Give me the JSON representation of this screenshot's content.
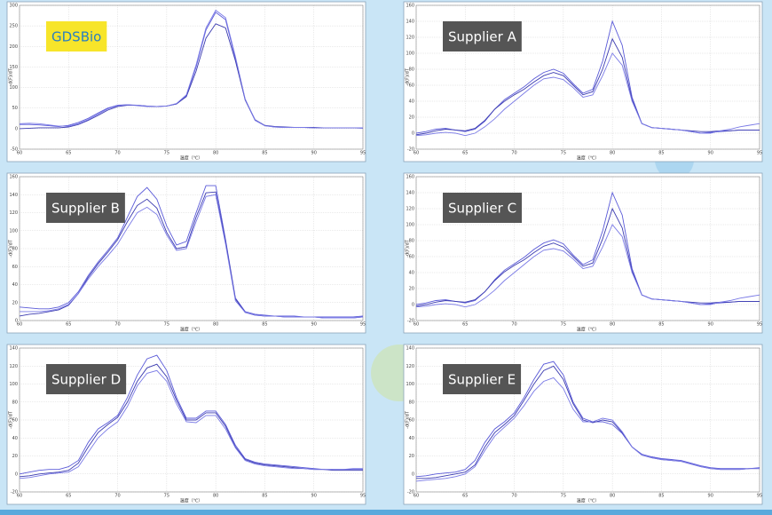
{
  "chart_data": [
    {
      "type": "line",
      "title": "GDSBio",
      "title_color": "#2a7fc1",
      "title_background": "#f7e52a",
      "x_label": "温度（℃）",
      "y_label": "-d(F)/dT",
      "x": [
        60,
        61,
        62,
        63,
        64,
        65,
        66,
        67,
        68,
        69,
        70,
        71,
        72,
        73,
        74,
        75,
        76,
        77,
        78,
        79,
        80,
        81,
        82,
        83,
        84,
        85,
        86,
        87,
        88,
        89,
        90,
        91,
        92,
        93,
        94,
        95
      ],
      "xlim": [
        60,
        95
      ],
      "xticks": [
        60,
        65,
        70,
        75,
        80,
        85,
        90,
        95
      ],
      "ylim": [
        -50,
        300
      ],
      "yticks": [
        -50,
        0,
        50,
        100,
        150,
        200,
        250,
        300
      ],
      "grid": true,
      "series": [
        {
          "color": "#5a5ad8",
          "values": [
            10,
            10,
            9,
            7,
            5,
            8,
            15,
            25,
            38,
            50,
            57,
            58,
            56,
            54,
            54,
            55,
            60,
            80,
            150,
            240,
            283,
            265,
            170,
            70,
            20,
            7,
            4,
            3,
            3,
            3,
            2,
            2,
            2,
            2,
            2,
            1
          ]
        },
        {
          "color": "#3b3bb0",
          "values": [
            0,
            1,
            2,
            2,
            2,
            4,
            10,
            20,
            32,
            45,
            54,
            57,
            57,
            55,
            54,
            55,
            60,
            78,
            140,
            220,
            255,
            245,
            165,
            70,
            22,
            8,
            5,
            4,
            3,
            3,
            3,
            2,
            2,
            2,
            2,
            2
          ]
        },
        {
          "color": "#7a7ae6",
          "values": [
            12,
            13,
            12,
            9,
            6,
            6,
            12,
            22,
            35,
            48,
            56,
            58,
            57,
            55,
            54,
            55,
            61,
            82,
            155,
            245,
            288,
            270,
            175,
            72,
            21,
            7,
            4,
            3,
            3,
            3,
            2,
            2,
            2,
            2,
            2,
            2
          ]
        }
      ]
    },
    {
      "type": "line",
      "title": "Supplier A",
      "title_color": "#ffffff",
      "title_background": "#555555",
      "x_label": "温度（℃）",
      "y_label": "-d(F)/dT",
      "x": [
        60,
        61,
        62,
        63,
        64,
        65,
        66,
        67,
        68,
        69,
        70,
        71,
        72,
        73,
        74,
        75,
        76,
        77,
        78,
        79,
        80,
        81,
        82,
        83,
        84,
        85,
        86,
        87,
        88,
        89,
        90,
        91,
        92,
        93,
        94,
        95
      ],
      "xlim": [
        60,
        95
      ],
      "xticks": [
        60,
        65,
        70,
        75,
        80,
        85,
        90,
        95
      ],
      "ylim": [
        -20,
        160
      ],
      "yticks": [
        -20,
        0,
        20,
        40,
        60,
        80,
        100,
        120,
        140,
        160
      ],
      "grid": true,
      "series": [
        {
          "color": "#5a5ad8",
          "values": [
            0,
            2,
            5,
            6,
            4,
            2,
            5,
            15,
            30,
            42,
            50,
            58,
            68,
            76,
            80,
            75,
            62,
            50,
            55,
            90,
            140,
            110,
            45,
            12,
            7,
            6,
            5,
            4,
            2,
            0,
            1,
            2,
            3,
            4,
            4,
            4
          ]
        },
        {
          "color": "#3b3bb0",
          "values": [
            -2,
            0,
            3,
            5,
            4,
            3,
            6,
            16,
            30,
            40,
            48,
            55,
            64,
            72,
            76,
            72,
            60,
            48,
            52,
            80,
            118,
            95,
            42,
            12,
            7,
            6,
            5,
            4,
            3,
            2,
            2,
            3,
            3,
            4,
            4,
            4
          ]
        },
        {
          "color": "#7a7ae6",
          "values": [
            -3,
            -2,
            0,
            1,
            0,
            -3,
            0,
            8,
            18,
            30,
            40,
            50,
            60,
            68,
            70,
            67,
            57,
            45,
            48,
            72,
            100,
            85,
            40,
            12,
            7,
            6,
            5,
            4,
            2,
            0,
            0,
            3,
            5,
            8,
            10,
            12
          ]
        }
      ]
    },
    {
      "type": "line",
      "title": "Supplier B",
      "title_color": "#ffffff",
      "title_background": "#555555",
      "x_label": "温度（℃）",
      "y_label": "-d(F)/dT",
      "x": [
        60,
        61,
        62,
        63,
        64,
        65,
        66,
        67,
        68,
        69,
        70,
        71,
        72,
        73,
        74,
        75,
        76,
        77,
        78,
        79,
        80,
        81,
        82,
        83,
        84,
        85,
        86,
        87,
        88,
        89,
        90,
        91,
        92,
        93,
        94,
        95
      ],
      "xlim": [
        60,
        95
      ],
      "xticks": [
        60,
        65,
        70,
        75,
        80,
        85,
        90,
        95
      ],
      "ylim": [
        0,
        160
      ],
      "yticks": [
        0,
        20,
        40,
        60,
        80,
        100,
        120,
        140,
        160
      ],
      "grid": true,
      "series": [
        {
          "color": "#5a5ad8",
          "values": [
            15,
            14,
            13,
            13,
            15,
            20,
            32,
            50,
            65,
            78,
            92,
            115,
            138,
            148,
            135,
            105,
            84,
            88,
            120,
            150,
            150,
            90,
            25,
            10,
            7,
            6,
            5,
            5,
            5,
            4,
            4,
            4,
            4,
            4,
            4,
            5
          ]
        },
        {
          "color": "#3b3bb0",
          "values": [
            5,
            7,
            8,
            10,
            12,
            17,
            30,
            48,
            63,
            76,
            90,
            110,
            128,
            135,
            125,
            98,
            80,
            82,
            115,
            142,
            143,
            88,
            24,
            9,
            6,
            5,
            5,
            4,
            4,
            4,
            4,
            3,
            3,
            3,
            3,
            4
          ]
        },
        {
          "color": "#7a7ae6",
          "values": [
            10,
            10,
            10,
            11,
            13,
            18,
            30,
            46,
            60,
            72,
            85,
            103,
            120,
            126,
            118,
            95,
            78,
            80,
            110,
            138,
            140,
            85,
            22,
            9,
            6,
            5,
            5,
            4,
            4,
            4,
            4,
            3,
            3,
            3,
            3,
            4
          ]
        }
      ]
    },
    {
      "type": "line",
      "title": "Supplier C",
      "title_color": "#ffffff",
      "title_background": "#555555",
      "x_label": "温度（℃）",
      "y_label": "-d(F)/dT",
      "x": [
        60,
        61,
        62,
        63,
        64,
        65,
        66,
        67,
        68,
        69,
        70,
        71,
        72,
        73,
        74,
        75,
        76,
        77,
        78,
        79,
        80,
        81,
        82,
        83,
        84,
        85,
        86,
        87,
        88,
        89,
        90,
        91,
        92,
        93,
        94,
        95
      ],
      "xlim": [
        60,
        95
      ],
      "xticks": [
        60,
        65,
        70,
        75,
        80,
        85,
        90,
        95
      ],
      "ylim": [
        -20,
        160
      ],
      "yticks": [
        -20,
        0,
        20,
        40,
        60,
        80,
        100,
        120,
        140,
        160
      ],
      "grid": true,
      "series": [
        {
          "color": "#5a5ad8",
          "values": [
            0,
            2,
            5,
            6,
            4,
            2,
            5,
            16,
            31,
            43,
            51,
            59,
            69,
            77,
            81,
            76,
            62,
            50,
            56,
            92,
            140,
            112,
            45,
            12,
            7,
            6,
            5,
            4,
            2,
            0,
            1,
            2,
            3,
            4,
            4,
            4
          ]
        },
        {
          "color": "#3b3bb0",
          "values": [
            -2,
            0,
            3,
            5,
            4,
            3,
            6,
            16,
            30,
            41,
            49,
            56,
            65,
            73,
            77,
            72,
            60,
            48,
            52,
            82,
            120,
            96,
            42,
            12,
            7,
            6,
            5,
            4,
            3,
            2,
            2,
            3,
            3,
            4,
            4,
            4
          ]
        },
        {
          "color": "#7a7ae6",
          "values": [
            -3,
            -2,
            0,
            1,
            0,
            -3,
            0,
            8,
            18,
            30,
            40,
            50,
            60,
            68,
            70,
            67,
            57,
            45,
            48,
            72,
            100,
            85,
            40,
            12,
            7,
            6,
            5,
            4,
            2,
            0,
            0,
            3,
            5,
            8,
            10,
            12
          ]
        }
      ]
    },
    {
      "type": "line",
      "title": "Supplier D",
      "title_color": "#ffffff",
      "title_background": "#555555",
      "x_label": "温度（℃）",
      "y_label": "-d(F)/dT",
      "x": [
        60,
        61,
        62,
        63,
        64,
        65,
        66,
        67,
        68,
        69,
        70,
        71,
        72,
        73,
        74,
        75,
        76,
        77,
        78,
        79,
        80,
        81,
        82,
        83,
        84,
        85,
        86,
        87,
        88,
        89,
        90,
        91,
        92,
        93,
        94,
        95
      ],
      "xlim": [
        60,
        95
      ],
      "xticks": [
        60,
        65,
        70,
        75,
        80,
        85,
        90,
        95
      ],
      "ylim": [
        -20,
        140
      ],
      "yticks": [
        -20,
        0,
        20,
        40,
        60,
        80,
        100,
        120,
        140
      ],
      "grid": true,
      "series": [
        {
          "color": "#5a5ad8",
          "values": [
            0,
            2,
            4,
            5,
            5,
            8,
            15,
            35,
            50,
            57,
            65,
            85,
            110,
            128,
            132,
            115,
            85,
            62,
            62,
            70,
            70,
            55,
            32,
            17,
            13,
            11,
            10,
            9,
            8,
            7,
            6,
            5,
            5,
            5,
            5,
            5
          ]
        },
        {
          "color": "#3b3bb0",
          "values": [
            -3,
            -2,
            0,
            1,
            2,
            4,
            12,
            30,
            46,
            55,
            63,
            80,
            103,
            118,
            122,
            108,
            82,
            60,
            60,
            68,
            68,
            53,
            30,
            16,
            12,
            10,
            9,
            8,
            7,
            6,
            5,
            5,
            4,
            4,
            4,
            4
          ]
        },
        {
          "color": "#7a7ae6",
          "values": [
            -5,
            -4,
            -2,
            0,
            1,
            2,
            8,
            24,
            40,
            50,
            58,
            75,
            98,
            112,
            115,
            103,
            78,
            58,
            57,
            65,
            65,
            50,
            29,
            15,
            11,
            9,
            8,
            7,
            6,
            6,
            5,
            5,
            5,
            5,
            6,
            6
          ]
        }
      ]
    },
    {
      "type": "line",
      "title": "Supplier E",
      "title_color": "#ffffff",
      "title_background": "#555555",
      "x_label": "温度（℃）",
      "y_label": "-d(F)/dT",
      "x": [
        60,
        61,
        62,
        63,
        64,
        65,
        66,
        67,
        68,
        69,
        70,
        71,
        72,
        73,
        74,
        75,
        76,
        77,
        78,
        79,
        80,
        81,
        82,
        83,
        84,
        85,
        86,
        87,
        88,
        89,
        90,
        91,
        92,
        93,
        94,
        95
      ],
      "xlim": [
        60,
        95
      ],
      "xticks": [
        60,
        65,
        70,
        75,
        80,
        85,
        90,
        95
      ],
      "ylim": [
        -20,
        140
      ],
      "yticks": [
        -20,
        0,
        20,
        40,
        60,
        80,
        100,
        120,
        140
      ],
      "grid": true,
      "series": [
        {
          "color": "#5a5ad8",
          "values": [
            -3,
            -2,
            0,
            1,
            2,
            5,
            15,
            35,
            50,
            58,
            68,
            85,
            105,
            122,
            125,
            110,
            80,
            62,
            58,
            58,
            55,
            45,
            30,
            22,
            19,
            17,
            16,
            15,
            12,
            9,
            7,
            6,
            6,
            6,
            6,
            7
          ]
        },
        {
          "color": "#3b3bb0",
          "values": [
            -5,
            -5,
            -4,
            -2,
            0,
            2,
            10,
            30,
            46,
            55,
            65,
            82,
            100,
            115,
            120,
            105,
            78,
            60,
            57,
            60,
            58,
            46,
            30,
            21,
            18,
            16,
            15,
            14,
            11,
            8,
            6,
            5,
            5,
            5,
            6,
            6
          ]
        },
        {
          "color": "#7a7ae6",
          "values": [
            -8,
            -7,
            -6,
            -5,
            -3,
            0,
            8,
            26,
            42,
            52,
            62,
            76,
            92,
            103,
            107,
            95,
            72,
            58,
            58,
            62,
            60,
            47,
            30,
            21,
            18,
            16,
            15,
            14,
            11,
            8,
            6,
            5,
            5,
            5,
            6,
            6
          ]
        }
      ]
    }
  ]
}
